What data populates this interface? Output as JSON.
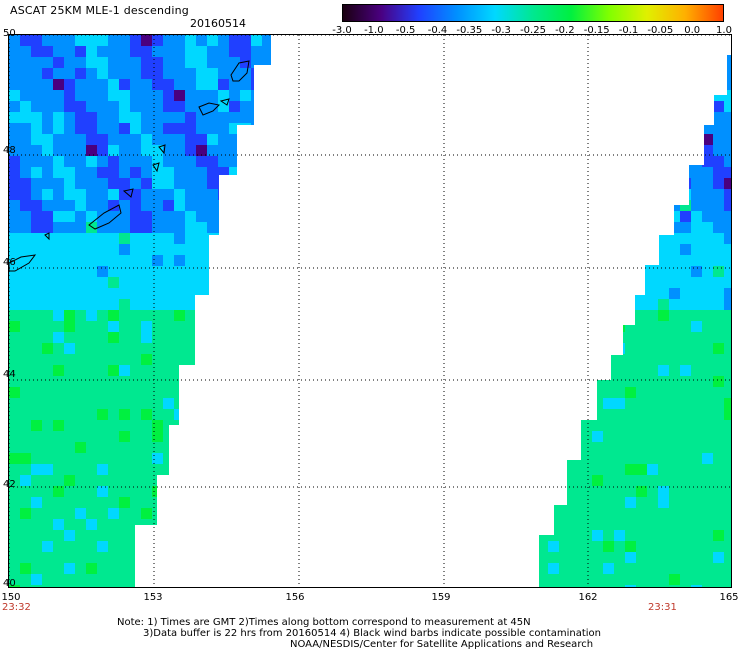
{
  "header": {
    "title": "ASCAT 25KM MLE-1 descending",
    "date": "20160514"
  },
  "colorbar": {
    "labels": [
      "-3.0",
      "-1.0",
      "-0.5",
      "-0.4",
      "-0.35",
      "-0.3",
      "-0.25",
      "-0.2",
      "-0.15",
      "-0.1",
      "-0.05",
      "0.0",
      "1.0"
    ],
    "colors": [
      "#1a0010",
      "#4a0080",
      "#2040ff",
      "#0090ff",
      "#00d8ff",
      "#00e890",
      "#00f040",
      "#80ff00",
      "#e0f000",
      "#ffb000",
      "#ff4000"
    ]
  },
  "map": {
    "lon_range": [
      150,
      165
    ],
    "lat_range": [
      40,
      50
    ],
    "lat_labels": [
      "50",
      "48",
      "46",
      "44",
      "42",
      "40"
    ],
    "lon_labels": [
      "150",
      "153",
      "156",
      "159",
      "162",
      "165"
    ],
    "time_left": "23:32",
    "time_right": "23:31"
  },
  "footer": {
    "line1": "Note: 1) Times are GMT 2)Times along bottom correspond to measurement at 45N",
    "line2": "3)Data buffer is 22 hrs from 20160514 4) Black wind barbs indicate possible contamination",
    "line3": "NOAA/NESDIS/Center for Satellite Applications and Research"
  }
}
